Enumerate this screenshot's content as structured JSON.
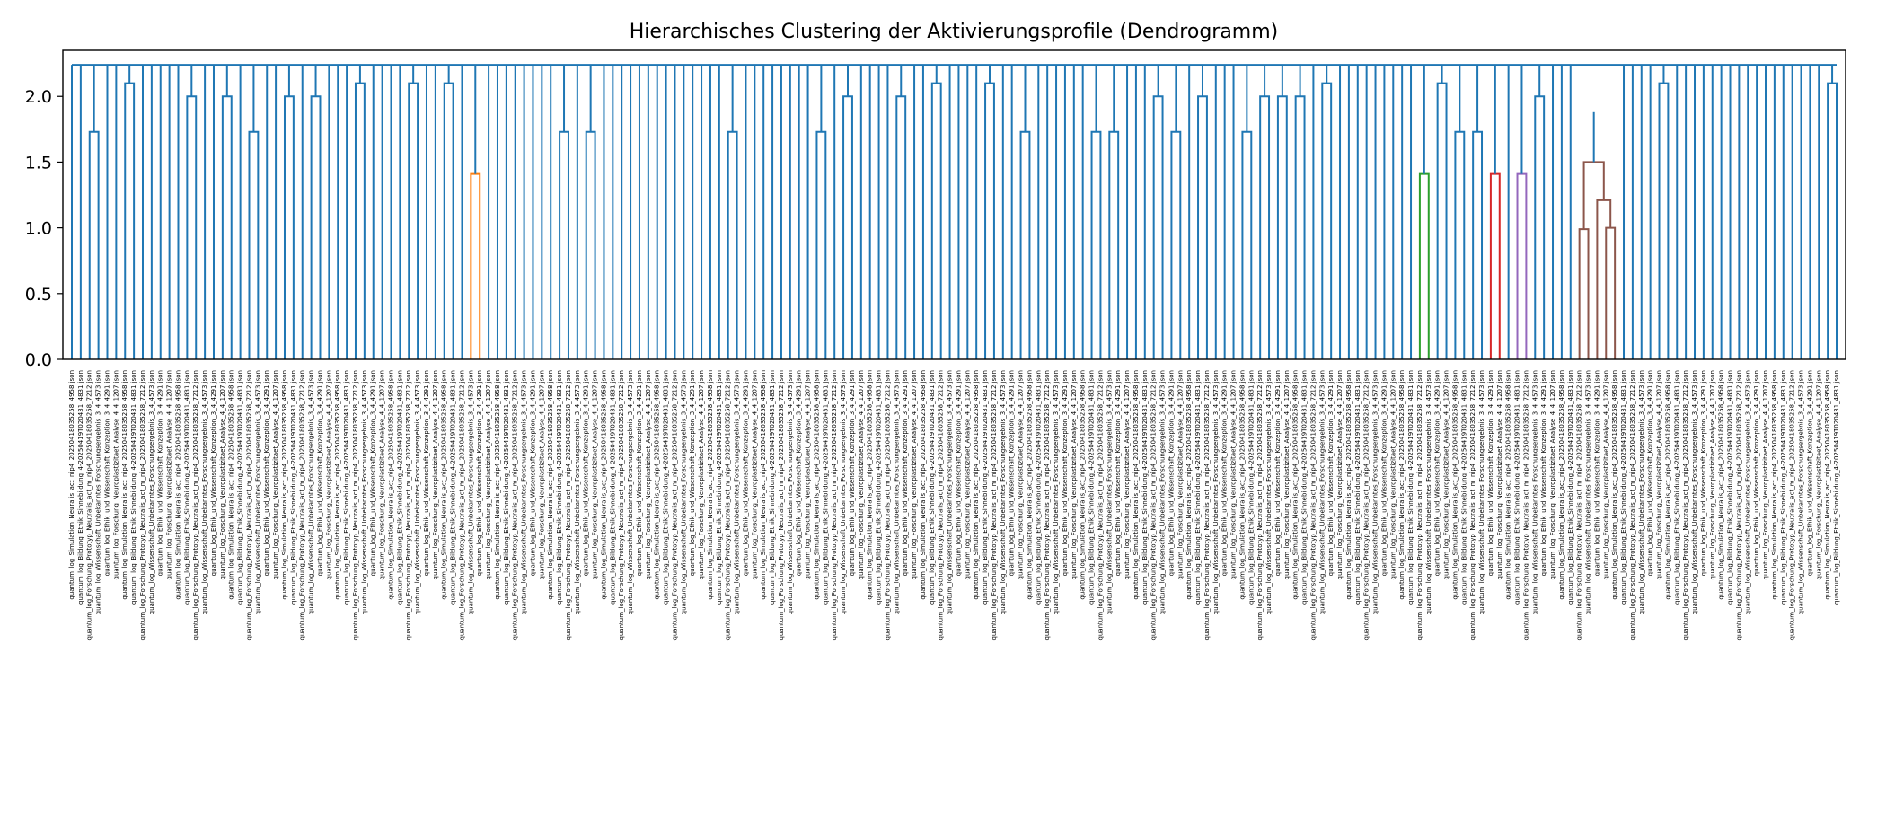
{
  "chart_data": {
    "type": "dendrogram",
    "title": "Hierarchisches Clustering der Aktivierungsprofile (Dendrogramm)",
    "xlabel": "",
    "ylabel": "",
    "ylim": [
      0,
      2.35
    ],
    "yticks": [
      0.0,
      0.5,
      1.0,
      1.5,
      2.0
    ],
    "ytick_labels": [
      "0.0",
      "0.5",
      "1.0",
      "1.5",
      "2.0"
    ],
    "leaf_count": 200,
    "top_merge_height": 2.24,
    "default_link_color": "#1f77b4",
    "leaf_label_samples": [
      "quantum_log_Simulation_Neuralis_act_nip4_20250418035258_4958.json",
      "quantum_log_Bildung_Ethik_Sinnebildung_4-20250419T020431_4831.json",
      "quantum_log_Forschung_Prototyp_Neutralis_act_m_nip4_20250418035258_7212.json",
      "quantum_log_Wissenschaft_Unbekanntes_Forschungsergebnis_3_4_4573.json",
      "quantum_log_Ethik_und_Wissenschaft_Konzeption_3_4_4291.json",
      "quantum_log_Forschung_Neuroplastizitaet_Analyse_4_4_1207.json"
    ],
    "colored_clusters": [
      {
        "color": "#ff7f0e",
        "leaf_index": 45,
        "height": 1.41
      },
      {
        "color": "#2ca02c",
        "leaf_index": 152,
        "height": 1.41
      },
      {
        "color": "#d62728",
        "leaf_index": 160,
        "height": 1.41
      },
      {
        "color": "#9467bd",
        "leaf_index": 163,
        "height": 1.41
      },
      {
        "color": "#8c564b",
        "leaves": [
          170,
          171,
          172,
          173,
          174
        ],
        "heights": [
          0.99,
          1.0,
          1.21,
          1.27,
          1.5
        ]
      }
    ],
    "merge_heights_observed": [
      1.73,
      2.0,
      2.1,
      2.15,
      2.2,
      2.24
    ]
  }
}
